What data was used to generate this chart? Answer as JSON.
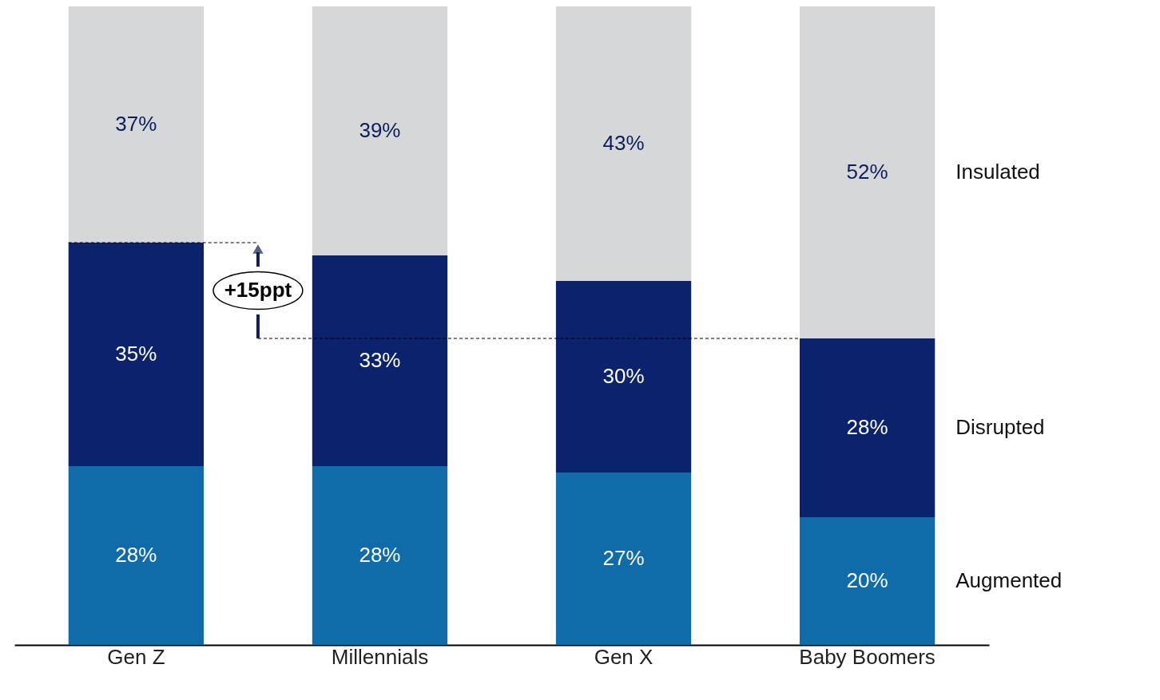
{
  "chart_data": {
    "type": "bar",
    "stacked": true,
    "categories": [
      "Gen Z",
      "Millennials",
      "Gen X",
      "Baby Boomers"
    ],
    "series": [
      {
        "name": "Augmented",
        "color": "#0f6ca8",
        "values": [
          28,
          28,
          27,
          20
        ],
        "value_labels": [
          "28%",
          "28%",
          "27%",
          "20%"
        ]
      },
      {
        "name": "Disrupted",
        "color": "#0a236c",
        "values": [
          35,
          33,
          30,
          28
        ],
        "value_labels": [
          "35%",
          "33%",
          "30%",
          "28%"
        ]
      },
      {
        "name": "Insulated",
        "color": "#d6d7d9",
        "values": [
          37,
          39,
          43,
          52
        ],
        "value_labels": [
          "37%",
          "39%",
          "43%",
          "52%"
        ]
      }
    ],
    "annotations": [
      "+15ppt"
    ],
    "ref_lines": [
      {
        "axis": "y",
        "value": 63,
        "color": "#000000",
        "line_style": "dashed"
      },
      {
        "axis": "y",
        "value": 48,
        "color": "#000000",
        "line_style": "dashed"
      }
    ],
    "grid": false
  }
}
